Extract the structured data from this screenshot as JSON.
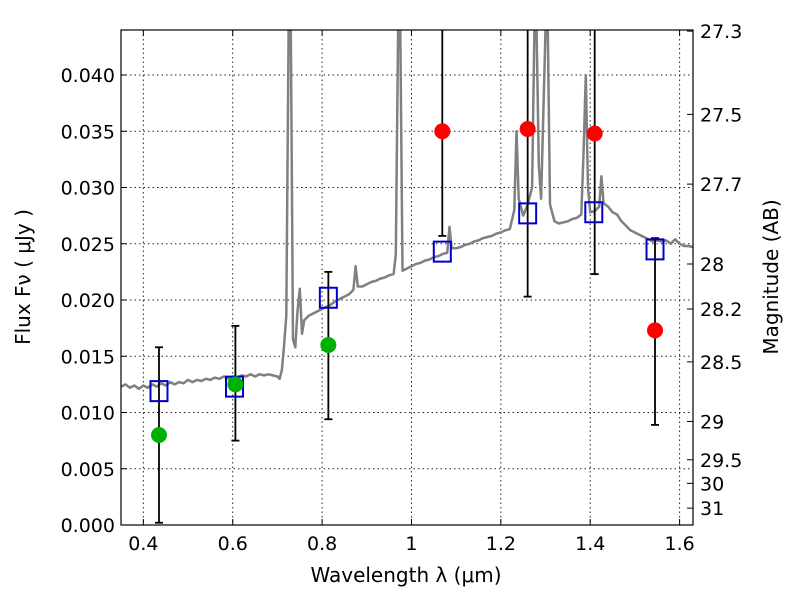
{
  "chart_data": {
    "type": "scatter",
    "xlabel": "Wavelength  λ (μm)",
    "ylabel": "Flux  Fν  ( μJy )",
    "ylabel_right": "Magnitude (AB)",
    "xlim": [
      0.35,
      1.63
    ],
    "ylim": [
      0.0,
      0.044
    ],
    "grid": true,
    "x_ticks": [
      {
        "value": 0.4,
        "label": "0.4"
      },
      {
        "value": 0.6,
        "label": "0.6"
      },
      {
        "value": 0.8,
        "label": "0.8"
      },
      {
        "value": 1.0,
        "label": "1"
      },
      {
        "value": 1.2,
        "label": "1.2"
      },
      {
        "value": 1.4,
        "label": "1.4"
      },
      {
        "value": 1.6,
        "label": "1.6"
      }
    ],
    "y_ticks": [
      {
        "value": 0.0,
        "label": "0.000"
      },
      {
        "value": 0.005,
        "label": "0.005"
      },
      {
        "value": 0.01,
        "label": "0.010"
      },
      {
        "value": 0.015,
        "label": "0.015"
      },
      {
        "value": 0.02,
        "label": "0.020"
      },
      {
        "value": 0.025,
        "label": "0.025"
      },
      {
        "value": 0.03,
        "label": "0.030"
      },
      {
        "value": 0.035,
        "label": "0.035"
      },
      {
        "value": 0.04,
        "label": "0.040"
      }
    ],
    "right_ticks": [
      {
        "flux": 0.0439,
        "label": "27.3"
      },
      {
        "flux": 0.0365,
        "label": "27.5"
      },
      {
        "flux": 0.0303,
        "label": "27.7"
      },
      {
        "flux": 0.0232,
        "label": "28"
      },
      {
        "flux": 0.0192,
        "label": "28.2"
      },
      {
        "flux": 0.0145,
        "label": "28.5"
      },
      {
        "flux": 0.0092,
        "label": "29"
      },
      {
        "flux": 0.0058,
        "label": "29.5"
      },
      {
        "flux": 0.0037,
        "label": "30"
      },
      {
        "flux": 0.0015,
        "label": "31"
      }
    ],
    "series": [
      {
        "kind": "spectrum",
        "color": "#808080",
        "points": [
          [
            0.35,
            0.0123
          ],
          [
            0.36,
            0.0125
          ],
          [
            0.37,
            0.0122
          ],
          [
            0.38,
            0.0124
          ],
          [
            0.39,
            0.0121
          ],
          [
            0.4,
            0.0124
          ],
          [
            0.41,
            0.0122
          ],
          [
            0.42,
            0.0125
          ],
          [
            0.43,
            0.0123
          ],
          [
            0.44,
            0.0126
          ],
          [
            0.45,
            0.0124
          ],
          [
            0.46,
            0.0127
          ],
          [
            0.47,
            0.0125
          ],
          [
            0.48,
            0.0127
          ],
          [
            0.49,
            0.0126
          ],
          [
            0.5,
            0.0129
          ],
          [
            0.51,
            0.0127
          ],
          [
            0.52,
            0.0129
          ],
          [
            0.53,
            0.0128
          ],
          [
            0.54,
            0.013
          ],
          [
            0.55,
            0.0129
          ],
          [
            0.56,
            0.0131
          ],
          [
            0.57,
            0.013
          ],
          [
            0.58,
            0.0132
          ],
          [
            0.59,
            0.013
          ],
          [
            0.6,
            0.0132
          ],
          [
            0.61,
            0.0131
          ],
          [
            0.62,
            0.0133
          ],
          [
            0.63,
            0.0132
          ],
          [
            0.64,
            0.0134
          ],
          [
            0.65,
            0.0132
          ],
          [
            0.66,
            0.0134
          ],
          [
            0.67,
            0.0133
          ],
          [
            0.68,
            0.0134
          ],
          [
            0.69,
            0.0133
          ],
          [
            0.7,
            0.0132
          ],
          [
            0.705,
            0.013
          ],
          [
            0.71,
            0.0138
          ],
          [
            0.715,
            0.016
          ],
          [
            0.72,
            0.0186
          ],
          [
            0.725,
            0.044
          ],
          [
            0.73,
            0.044
          ],
          [
            0.735,
            0.0165
          ],
          [
            0.74,
            0.0158
          ],
          [
            0.745,
            0.019
          ],
          [
            0.75,
            0.021
          ],
          [
            0.755,
            0.017
          ],
          [
            0.76,
            0.0182
          ],
          [
            0.77,
            0.0186
          ],
          [
            0.78,
            0.0188
          ],
          [
            0.79,
            0.019
          ],
          [
            0.8,
            0.0192
          ],
          [
            0.81,
            0.0194
          ],
          [
            0.82,
            0.0196
          ],
          [
            0.83,
            0.0199
          ],
          [
            0.84,
            0.0201
          ],
          [
            0.85,
            0.0203
          ],
          [
            0.86,
            0.0205
          ],
          [
            0.87,
            0.0209
          ],
          [
            0.875,
            0.023
          ],
          [
            0.88,
            0.0212
          ],
          [
            0.89,
            0.0212
          ],
          [
            0.9,
            0.0214
          ],
          [
            0.91,
            0.0216
          ],
          [
            0.92,
            0.0217
          ],
          [
            0.93,
            0.0219
          ],
          [
            0.94,
            0.022
          ],
          [
            0.95,
            0.0222
          ],
          [
            0.96,
            0.0223
          ],
          [
            0.965,
            0.024
          ],
          [
            0.97,
            0.044
          ],
          [
            0.975,
            0.044
          ],
          [
            0.98,
            0.0226
          ],
          [
            0.99,
            0.0228
          ],
          [
            1.0,
            0.023
          ],
          [
            1.01,
            0.0232
          ],
          [
            1.02,
            0.0233
          ],
          [
            1.03,
            0.0235
          ],
          [
            1.04,
            0.0236
          ],
          [
            1.05,
            0.0238
          ],
          [
            1.06,
            0.0239
          ],
          [
            1.07,
            0.0241
          ],
          [
            1.08,
            0.0242
          ],
          [
            1.085,
            0.0265
          ],
          [
            1.09,
            0.0246
          ],
          [
            1.1,
            0.0246
          ],
          [
            1.11,
            0.0247
          ],
          [
            1.12,
            0.0249
          ],
          [
            1.13,
            0.025
          ],
          [
            1.14,
            0.0252
          ],
          [
            1.15,
            0.0253
          ],
          [
            1.16,
            0.0255
          ],
          [
            1.17,
            0.0256
          ],
          [
            1.18,
            0.0257
          ],
          [
            1.19,
            0.0259
          ],
          [
            1.2,
            0.026
          ],
          [
            1.21,
            0.0262
          ],
          [
            1.22,
            0.0263
          ],
          [
            1.23,
            0.028
          ],
          [
            1.235,
            0.035
          ],
          [
            1.24,
            0.029
          ],
          [
            1.25,
            0.0275
          ],
          [
            1.26,
            0.0285
          ],
          [
            1.27,
            0.03
          ],
          [
            1.275,
            0.044
          ],
          [
            1.28,
            0.044
          ],
          [
            1.285,
            0.032
          ],
          [
            1.29,
            0.029
          ],
          [
            1.3,
            0.044
          ],
          [
            1.305,
            0.044
          ],
          [
            1.31,
            0.0285
          ],
          [
            1.32,
            0.027
          ],
          [
            1.33,
            0.0268
          ],
          [
            1.34,
            0.0269
          ],
          [
            1.35,
            0.027
          ],
          [
            1.36,
            0.0272
          ],
          [
            1.37,
            0.0273
          ],
          [
            1.38,
            0.0276
          ],
          [
            1.385,
            0.033
          ],
          [
            1.39,
            0.04
          ],
          [
            1.395,
            0.03
          ],
          [
            1.4,
            0.0278
          ],
          [
            1.41,
            0.0279
          ],
          [
            1.42,
            0.0283
          ],
          [
            1.425,
            0.031
          ],
          [
            1.43,
            0.0286
          ],
          [
            1.44,
            0.0283
          ],
          [
            1.45,
            0.0278
          ],
          [
            1.46,
            0.0276
          ],
          [
            1.47,
            0.027
          ],
          [
            1.48,
            0.0266
          ],
          [
            1.49,
            0.0262
          ],
          [
            1.5,
            0.026
          ],
          [
            1.51,
            0.0258
          ],
          [
            1.52,
            0.0256
          ],
          [
            1.53,
            0.0254
          ],
          [
            1.54,
            0.0252
          ],
          [
            1.55,
            0.0253
          ],
          [
            1.56,
            0.0252
          ],
          [
            1.57,
            0.0253
          ],
          [
            1.58,
            0.025
          ],
          [
            1.59,
            0.0254
          ],
          [
            1.6,
            0.025
          ],
          [
            1.61,
            0.0248
          ],
          [
            1.62,
            0.0248
          ],
          [
            1.63,
            0.0247
          ]
        ]
      },
      {
        "kind": "observed",
        "color": "#00b000",
        "points": [
          {
            "x": 0.435,
            "y": 0.008,
            "err_lo": 0.0002,
            "err_hi": 0.0158
          },
          {
            "x": 0.606,
            "y": 0.0125,
            "err_lo": 0.0075,
            "err_hi": 0.0177
          },
          {
            "x": 0.814,
            "y": 0.016,
            "err_lo": 0.0094,
            "err_hi": 0.0225
          }
        ]
      },
      {
        "kind": "observed",
        "color": "#ff0000",
        "points": [
          {
            "x": 1.069,
            "y": 0.035,
            "err_lo": 0.0257,
            "err_hi": 0.044
          },
          {
            "x": 1.26,
            "y": 0.0352,
            "err_lo": 0.0203,
            "err_hi": 0.044
          },
          {
            "x": 1.41,
            "y": 0.0348,
            "err_lo": 0.0223,
            "err_hi": 0.044
          },
          {
            "x": 1.545,
            "y": 0.0173,
            "err_lo": 0.0089,
            "err_hi": 0.0255
          }
        ]
      },
      {
        "kind": "model",
        "color": "#0000cc",
        "points": [
          {
            "x": 0.435,
            "y": 0.0119
          },
          {
            "x": 0.604,
            "y": 0.0123
          },
          {
            "x": 0.814,
            "y": 0.0202
          },
          {
            "x": 1.069,
            "y": 0.0243
          },
          {
            "x": 1.26,
            "y": 0.0277
          },
          {
            "x": 1.408,
            "y": 0.0278
          },
          {
            "x": 1.545,
            "y": 0.0245
          }
        ]
      }
    ]
  }
}
